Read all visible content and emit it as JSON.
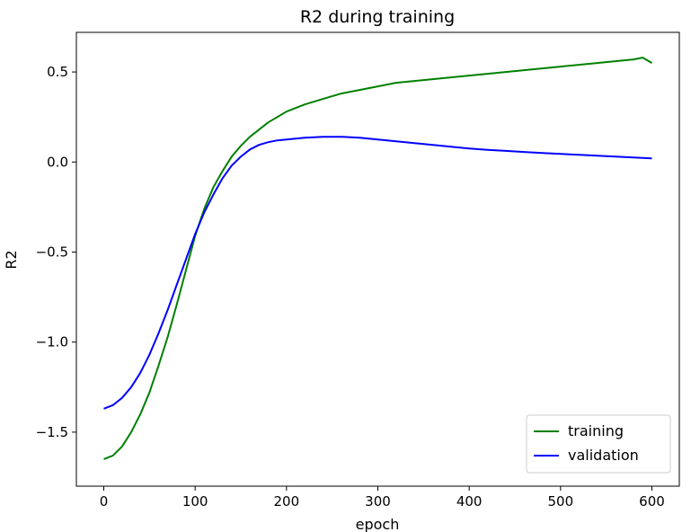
{
  "chart_data": {
    "type": "line",
    "title": "R2 during training",
    "xlabel": "epoch",
    "ylabel": "R2",
    "xlim": [
      -30,
      630
    ],
    "ylim": [
      -1.8,
      0.72
    ],
    "x_ticks": [
      0,
      100,
      200,
      300,
      400,
      500,
      600
    ],
    "x_tick_labels": [
      "0",
      "100",
      "200",
      "300",
      "400",
      "500",
      "600"
    ],
    "y_ticks": [
      -1.5,
      -1.0,
      -0.5,
      0.0,
      0.5
    ],
    "y_tick_labels": [
      "−1.5",
      "−1.0",
      "−0.5",
      "0.0",
      "0.5"
    ],
    "grid": false,
    "legend_position": "lower-right",
    "series": [
      {
        "name": "training",
        "color": "#008000",
        "x": [
          0,
          10,
          20,
          30,
          40,
          50,
          60,
          70,
          80,
          90,
          100,
          110,
          120,
          130,
          140,
          150,
          160,
          170,
          180,
          190,
          200,
          220,
          240,
          260,
          280,
          300,
          320,
          340,
          360,
          380,
          400,
          420,
          440,
          460,
          480,
          500,
          520,
          540,
          560,
          580,
          590,
          600
        ],
        "y": [
          -1.65,
          -1.63,
          -1.58,
          -1.5,
          -1.4,
          -1.28,
          -1.13,
          -0.97,
          -0.79,
          -0.6,
          -0.41,
          -0.26,
          -0.14,
          -0.05,
          0.03,
          0.09,
          0.14,
          0.18,
          0.22,
          0.25,
          0.28,
          0.32,
          0.35,
          0.38,
          0.4,
          0.42,
          0.44,
          0.45,
          0.46,
          0.47,
          0.48,
          0.49,
          0.5,
          0.51,
          0.52,
          0.53,
          0.54,
          0.55,
          0.56,
          0.57,
          0.58,
          0.55
        ]
      },
      {
        "name": "validation",
        "color": "#0000ff",
        "x": [
          0,
          10,
          20,
          30,
          40,
          50,
          60,
          70,
          80,
          90,
          100,
          110,
          120,
          130,
          140,
          150,
          160,
          170,
          180,
          190,
          200,
          220,
          240,
          260,
          280,
          300,
          320,
          340,
          360,
          380,
          400,
          420,
          440,
          460,
          480,
          500,
          520,
          540,
          560,
          580,
          600
        ],
        "y": [
          -1.37,
          -1.35,
          -1.31,
          -1.25,
          -1.17,
          -1.07,
          -0.95,
          -0.82,
          -0.68,
          -0.54,
          -0.4,
          -0.28,
          -0.18,
          -0.09,
          -0.02,
          0.03,
          0.07,
          0.095,
          0.11,
          0.12,
          0.125,
          0.135,
          0.14,
          0.14,
          0.135,
          0.125,
          0.115,
          0.105,
          0.095,
          0.085,
          0.075,
          0.068,
          0.062,
          0.056,
          0.05,
          0.045,
          0.04,
          0.035,
          0.03,
          0.025,
          0.02
        ]
      }
    ]
  }
}
